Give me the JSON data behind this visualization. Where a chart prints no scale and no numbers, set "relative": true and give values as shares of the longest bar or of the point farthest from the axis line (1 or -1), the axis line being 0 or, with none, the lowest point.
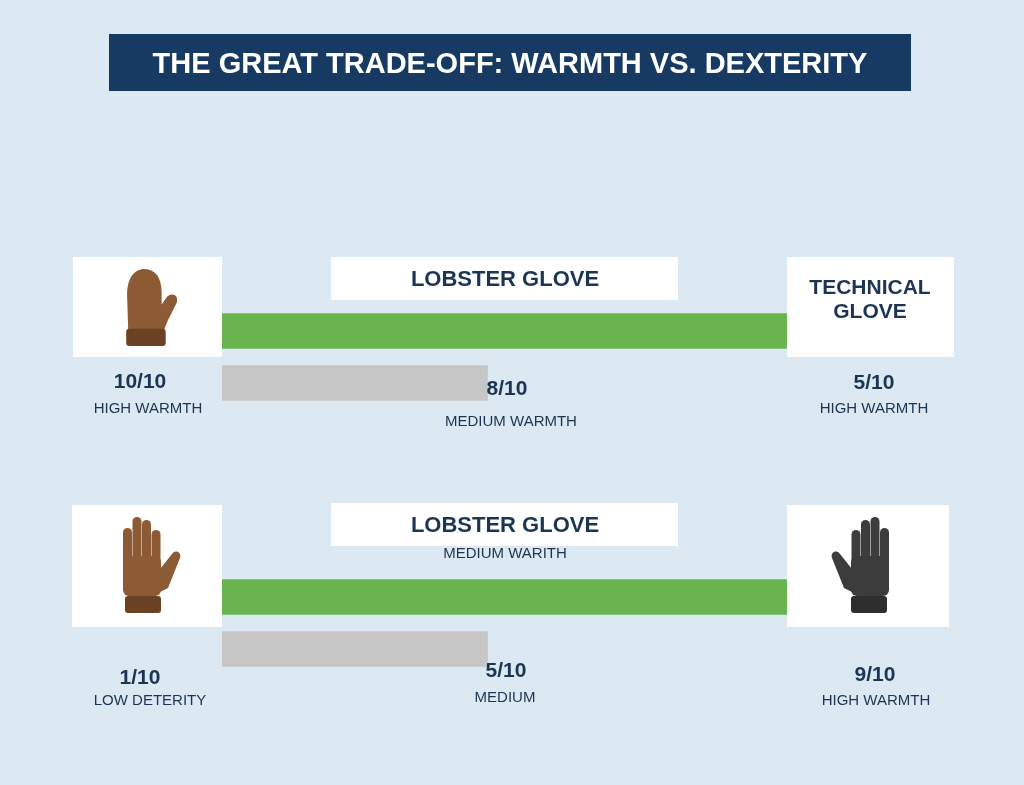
{
  "chart_data": [
    {
      "type": "bar",
      "title": "THE GREAT TRADE-OFF: WARMTH VS. DEXTERITY",
      "orientation": "horizontal",
      "relative": true,
      "categories": [
        null,
        null
      ],
      "values": [
        1,
        0.47
      ],
      "colors": [
        "#6ab44f",
        "#c6c6c6"
      ],
      "annotations": [
        "LOBSTER GLOVE",
        "TECHNICAL GLOVE",
        "10/10",
        "HIGH WARMTH",
        "8/10",
        "MEDIUM WARMTH",
        "5/10",
        "HIGH WARMTH"
      ]
    },
    {
      "type": "bar",
      "orientation": "horizontal",
      "relative": true,
      "categories": [
        null,
        null
      ],
      "values": [
        1,
        0.47
      ],
      "colors": [
        "#6ab44f",
        "#c6c6c6"
      ],
      "annotations": [
        "LOBSTER GLOVE",
        "MEDIUM WARITH",
        "1/10",
        "LOW DETERITY",
        "5/10",
        "MEDIUM",
        "9/10",
        "HIGH WARMTH"
      ]
    }
  ]
}
